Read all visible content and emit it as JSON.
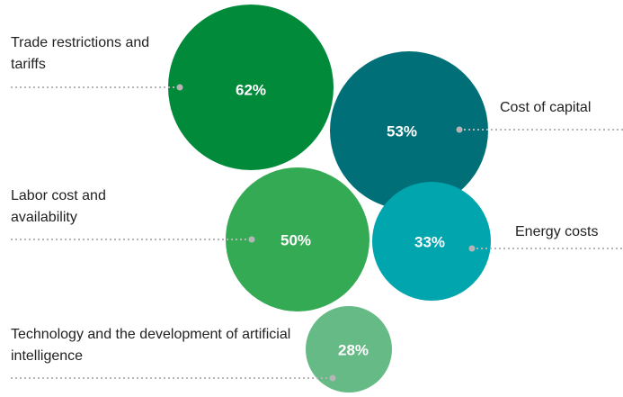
{
  "chart_data": {
    "type": "bubble",
    "categories": [
      "Trade restrictions and tariffs",
      "Cost of capital",
      "Labor cost and availability",
      "Energy costs",
      "Technology and the development of artificial intelligence"
    ],
    "values": [
      62,
      53,
      50,
      33,
      28
    ],
    "value_labels": [
      "62%",
      "53%",
      "50%",
      "33%",
      "28%"
    ],
    "colors": [
      "#008a3a",
      "#006f78",
      "#35aa55",
      "#00a5ae",
      "#66ba86"
    ]
  }
}
